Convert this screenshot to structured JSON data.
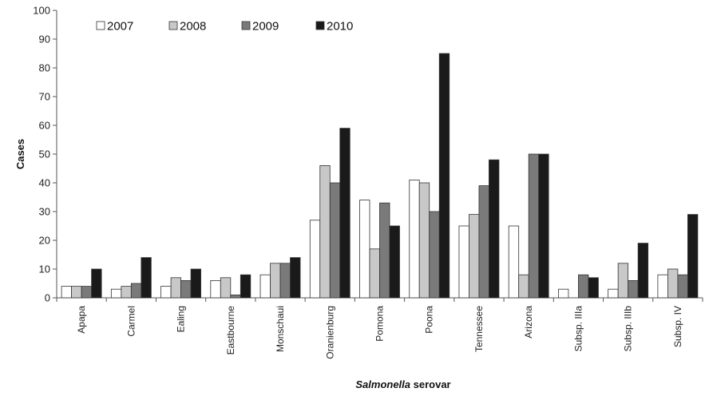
{
  "chart_data": {
    "type": "bar",
    "title": "",
    "xlabel_italic": "Salmonella",
    "xlabel_rest": " serovar",
    "ylabel": "Cases",
    "ylim": [
      0,
      100
    ],
    "yticks": [
      0,
      10,
      20,
      30,
      40,
      50,
      60,
      70,
      80,
      90,
      100
    ],
    "grid": false,
    "legend_position": "top-left",
    "categories": [
      "Apapa",
      "Carmel",
      "Ealing",
      "Eastbourne",
      "Monschaui",
      "Oranienburg",
      "Pomona",
      "Poona",
      "Tennessee",
      "Arizona",
      "Subsp. IIIa",
      "Subsp. IIIb",
      "Subsp. IV"
    ],
    "series": [
      {
        "name": "2007",
        "color": "#ffffff",
        "values": [
          4,
          3,
          4,
          6,
          8,
          27,
          34,
          41,
          25,
          25,
          3,
          3,
          8
        ]
      },
      {
        "name": "2008",
        "color": "#c8c8c8",
        "values": [
          4,
          4,
          7,
          7,
          12,
          46,
          17,
          40,
          29,
          8,
          0,
          12,
          10
        ]
      },
      {
        "name": "2009",
        "color": "#7a7a7a",
        "values": [
          4,
          5,
          6,
          1,
          12,
          40,
          33,
          30,
          39,
          50,
          8,
          6,
          8
        ]
      },
      {
        "name": "2010",
        "color": "#1a1a1a",
        "values": [
          10,
          14,
          10,
          8,
          14,
          59,
          25,
          85,
          48,
          50,
          7,
          19,
          29
        ]
      }
    ]
  }
}
